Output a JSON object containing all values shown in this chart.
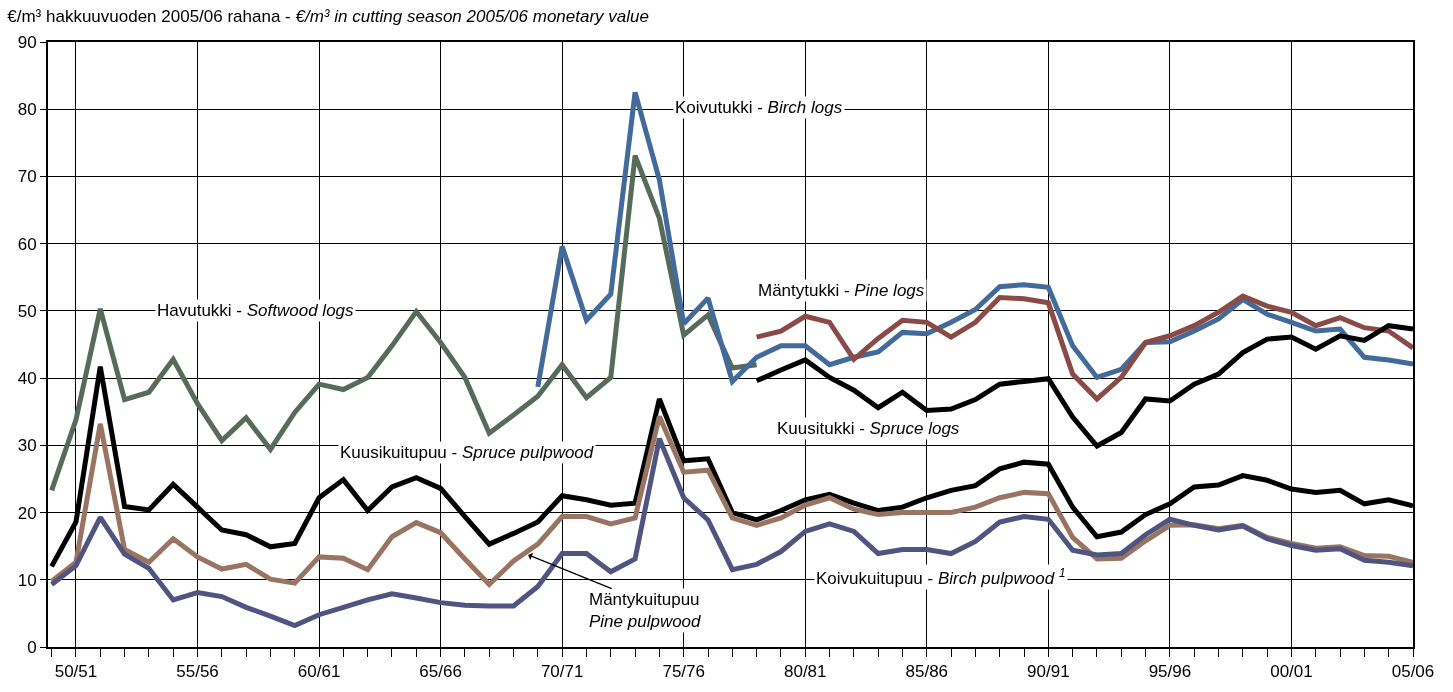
{
  "chart_data": {
    "type": "line",
    "title": "€/m³ hakkuuvuoden 2005/06 rahana - €/m³ in cutting season 2005/06 monetary value",
    "categories": [
      null,
      "50/51",
      null,
      null,
      null,
      null,
      "55/56",
      null,
      null,
      null,
      null,
      "60/61",
      null,
      null,
      null,
      null,
      "65/66",
      null,
      null,
      null,
      null,
      "70/71",
      null,
      null,
      null,
      null,
      "75/76",
      null,
      null,
      null,
      null,
      "80/81",
      null,
      null,
      null,
      null,
      "85/86",
      null,
      null,
      null,
      null,
      "90/91",
      null,
      null,
      null,
      null,
      "95/96",
      null,
      null,
      null,
      null,
      "00/01",
      null,
      null,
      null,
      null,
      "05/06"
    ],
    "ylim": [
      0,
      90
    ],
    "yticks": [
      0,
      10,
      20,
      30,
      40,
      50,
      60,
      70,
      80,
      90
    ],
    "grid": true,
    "legend": false,
    "marker": "none",
    "line_style": "solid",
    "series": [
      {
        "name": "Havutukki - Softwood logs",
        "color": "#566b59",
        "values": [
          23.3,
          33.8,
          50.3,
          36.8,
          37.9,
          42.8,
          36.2,
          30.7,
          34.1,
          29.4,
          34.9,
          39.1,
          38.3,
          40.1,
          44.8,
          49.9,
          45.3,
          40.1,
          31.8,
          34.5,
          37.3,
          42,
          37.1,
          40.1,
          73.1,
          63.8,
          46.4,
          49.4,
          41.5,
          42,
          null,
          null,
          null,
          null,
          null,
          null,
          null,
          null,
          null,
          null,
          null,
          null,
          null,
          null,
          null,
          null,
          null,
          null,
          null,
          null,
          null,
          null,
          null,
          null,
          null,
          null,
          null
        ]
      },
      {
        "name": "Koivutukki - Birch logs",
        "color": "#426a9a",
        "values": [
          null,
          null,
          null,
          null,
          null,
          null,
          null,
          null,
          null,
          null,
          null,
          null,
          null,
          null,
          null,
          null,
          null,
          null,
          null,
          null,
          38.7,
          59.6,
          48.6,
          52.5,
          82.5,
          69.5,
          48.1,
          51.9,
          39.5,
          43.1,
          44.8,
          44.8,
          42,
          43.1,
          43.9,
          46.8,
          46.6,
          48.3,
          50.2,
          53.6,
          53.9,
          53.5,
          44.8,
          40.1,
          41.3,
          45.3,
          45.4,
          47,
          48.8,
          51.7,
          49.5,
          48.3,
          47,
          47.3,
          43.1,
          42.7,
          42.1
        ]
      },
      {
        "name": "Mäntytukki - Pine logs",
        "color": "#8a4a46",
        "values": [
          null,
          null,
          null,
          null,
          null,
          null,
          null,
          null,
          null,
          null,
          null,
          null,
          null,
          null,
          null,
          null,
          null,
          null,
          null,
          null,
          null,
          null,
          null,
          null,
          null,
          null,
          null,
          null,
          null,
          46.1,
          47,
          49.2,
          48.3,
          42.8,
          45.9,
          48.6,
          48.3,
          46.1,
          48.3,
          52,
          51.8,
          51.2,
          40.6,
          36.9,
          40.1,
          45.3,
          46.3,
          47.8,
          49.8,
          52.2,
          50.7,
          49.8,
          47.8,
          49,
          47.5,
          47,
          44.5
        ]
      },
      {
        "name": "Kuusitukki - Spruce logs",
        "color": "#000000",
        "values": [
          null,
          null,
          null,
          null,
          null,
          null,
          null,
          null,
          null,
          null,
          null,
          null,
          null,
          null,
          null,
          null,
          null,
          null,
          null,
          null,
          null,
          null,
          null,
          null,
          null,
          null,
          null,
          null,
          null,
          39.6,
          41.2,
          42.7,
          40.1,
          38.2,
          35.6,
          37.9,
          35.2,
          35.4,
          36.8,
          39.1,
          39.5,
          39.9,
          34.2,
          29.9,
          31.9,
          36.9,
          36.6,
          39.1,
          40.6,
          43.8,
          45.8,
          46.1,
          44.3,
          46.3,
          45.6,
          47.8,
          47.3
        ]
      },
      {
        "name": "Kuusikuitupuu - Spruce pulpwood",
        "color": "#000000",
        "values": [
          12,
          18.6,
          41.7,
          20.9,
          20.4,
          24.2,
          20.8,
          17.4,
          16.7,
          14.9,
          15.4,
          22.2,
          24.9,
          20.3,
          23.8,
          25.2,
          23.6,
          19.4,
          15.3,
          16.9,
          18.6,
          22.5,
          21.9,
          21.1,
          21.4,
          36.9,
          27.7,
          28,
          20,
          18.9,
          20.3,
          21.9,
          22.7,
          21.4,
          20.3,
          20.8,
          22.2,
          23.3,
          24,
          26.5,
          27.5,
          27.2,
          20.8,
          16.4,
          17.1,
          19.7,
          21.3,
          23.8,
          24.1,
          25.5,
          24.8,
          23.5,
          23,
          23.3,
          21.3,
          21.9,
          21
        ]
      },
      {
        "name": "Mäntykuitupuu\nPine pulpwood",
        "color": "#9a7462",
        "values": [
          9.8,
          12.6,
          33.2,
          14.5,
          12.6,
          16.1,
          13.4,
          11.6,
          12.3,
          10.1,
          9.5,
          13.4,
          13.2,
          11.5,
          16.4,
          18.5,
          17,
          13.1,
          9.3,
          12.8,
          15.3,
          19.4,
          19.4,
          18.3,
          19.2,
          34.3,
          26,
          26.3,
          19.2,
          18.1,
          19.2,
          21.1,
          22.2,
          20.5,
          19.7,
          20,
          20,
          20,
          20.8,
          22.2,
          23,
          22.8,
          16.3,
          13.1,
          13.2,
          15.8,
          18.1,
          18.2,
          17.6,
          18.1,
          16.3,
          15.4,
          14.7,
          14.9,
          13.6,
          13.5,
          12.6
        ]
      },
      {
        "name": "Koivukuitupuu - Birch pulpwood $^{1}$",
        "color": "#4f5480",
        "values": [
          9.3,
          12.1,
          19.3,
          13.8,
          11.7,
          7,
          8.1,
          7.5,
          5.9,
          4.6,
          3.2,
          4.8,
          5.9,
          7,
          7.9,
          7.3,
          6.6,
          6.2,
          6.1,
          6.1,
          9,
          13.9,
          13.9,
          11.2,
          13.1,
          31,
          22.2,
          18.9,
          11.5,
          12.3,
          14.2,
          17.2,
          18.3,
          17.2,
          13.9,
          14.5,
          14.5,
          13.9,
          15.7,
          18.6,
          19.4,
          19,
          14.4,
          13.7,
          13.9,
          16.7,
          19,
          18.1,
          17.4,
          18,
          16.1,
          15.1,
          14.4,
          14.6,
          12.9,
          12.6,
          12.1
        ]
      }
    ]
  }
}
